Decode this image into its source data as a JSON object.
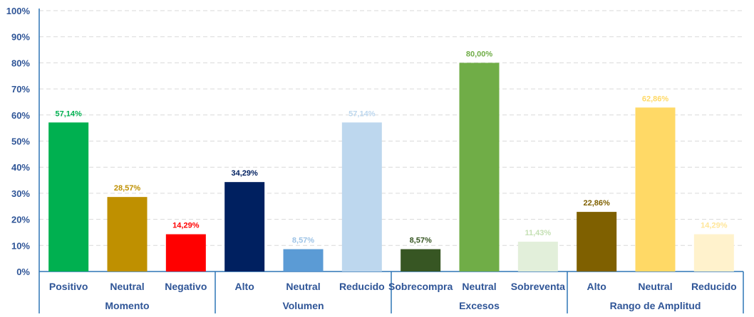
{
  "chart_data": {
    "type": "bar",
    "title": "",
    "xlabel": "",
    "ylabel": "",
    "ylim": [
      0,
      100
    ],
    "ytick_step": 10,
    "ytick_suffix": "%",
    "grid": true,
    "legend": "none",
    "groups": [
      {
        "name": "Momento",
        "bars": [
          {
            "label": "Positivo",
            "value": 57.14,
            "value_label": "57,14%",
            "color": "#00B050",
            "label_color": "#00B050"
          },
          {
            "label": "Neutral",
            "value": 28.57,
            "value_label": "28,57%",
            "color": "#BF9000",
            "label_color": "#BF9000"
          },
          {
            "label": "Negativo",
            "value": 14.29,
            "value_label": "14,29%",
            "color": "#FF0000",
            "label_color": "#FF0000"
          }
        ]
      },
      {
        "name": "Volumen",
        "bars": [
          {
            "label": "Alto",
            "value": 34.29,
            "value_label": "34,29%",
            "color": "#002060",
            "label_color": "#002060"
          },
          {
            "label": "Neutral",
            "value": 8.57,
            "value_label": "8,57%",
            "color": "#5B9BD5",
            "label_color": "#9DC3E6"
          },
          {
            "label": "Reducido",
            "value": 57.14,
            "value_label": "57,14%",
            "color": "#BDD7EE",
            "label_color": "#BDD7EE"
          }
        ]
      },
      {
        "name": "Excesos",
        "bars": [
          {
            "label": "Sobrecompra",
            "value": 8.57,
            "value_label": "8,57%",
            "color": "#375623",
            "label_color": "#375623"
          },
          {
            "label": "Neutral",
            "value": 80.0,
            "value_label": "80,00%",
            "color": "#70AD47",
            "label_color": "#70AD47"
          },
          {
            "label": "Sobreventa",
            "value": 11.43,
            "value_label": "11,43%",
            "color": "#E2EFDA",
            "label_color": "#C5E0B4"
          }
        ]
      },
      {
        "name": "Rango de Amplitud",
        "bars": [
          {
            "label": "Alto",
            "value": 22.86,
            "value_label": "22,86%",
            "color": "#7F6000",
            "label_color": "#7F6000"
          },
          {
            "label": "Neutral",
            "value": 62.86,
            "value_label": "62,86%",
            "color": "#FFD966",
            "label_color": "#FFD966"
          },
          {
            "label": "Reducido",
            "value": 14.29,
            "value_label": "14,29%",
            "color": "#FFF2CC",
            "label_color": "#FFE699"
          }
        ]
      }
    ]
  }
}
